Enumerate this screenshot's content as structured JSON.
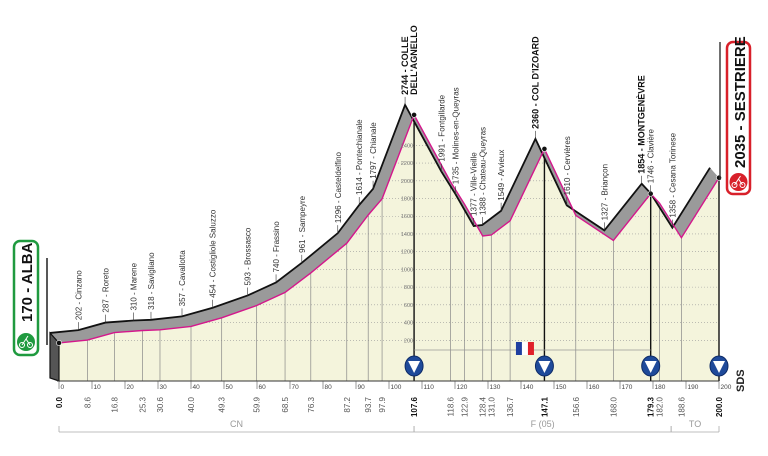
{
  "chart_data": {
    "type": "area",
    "title": "",
    "xlabel": "",
    "ylabel": "",
    "xlim": [
      0,
      200
    ],
    "ylim": [
      0,
      2800
    ],
    "x_ticks": [
      0,
      10,
      20,
      30,
      40,
      50,
      60,
      70,
      80,
      90,
      100,
      110,
      120,
      130,
      140,
      150,
      160,
      170,
      180,
      190,
      200
    ],
    "y_ticks": [
      200,
      400,
      600,
      800,
      1000,
      1200,
      1400,
      1600,
      1800,
      2000,
      2200,
      2400
    ],
    "grid": true,
    "colors": {
      "profile_line": "#d4178c",
      "fill": "#f4f4dc",
      "band": "#9a9a9a",
      "top_line": "#111111",
      "start": "#1f9a3f",
      "finish": "#d8202a",
      "marker": "#1f4a9a"
    },
    "start": {
      "label": "170 - ALBA",
      "icon": "cyclist-icon"
    },
    "finish": {
      "label": "2035 - SESTRIERE",
      "icon": "cyclist-icon"
    },
    "waypoints": [
      {
        "km": 0.0,
        "km_label": "0.0",
        "alt": 170,
        "name": "",
        "bold": true
      },
      {
        "km": 8.6,
        "km_label": "8.6",
        "alt": 202,
        "name": "202 - Cinzano"
      },
      {
        "km": 16.8,
        "km_label": "16.8",
        "alt": 287,
        "name": "287 - Roreto"
      },
      {
        "km": 25.3,
        "km_label": "25.3",
        "alt": 310,
        "name": "310 - Marene"
      },
      {
        "km": 30.6,
        "km_label": "30.6",
        "alt": 318,
        "name": "318 - Savigliano"
      },
      {
        "km": 40.0,
        "km_label": "40.0",
        "alt": 357,
        "name": "357 - Cavallotta"
      },
      {
        "km": 49.3,
        "km_label": "49.3",
        "alt": 454,
        "name": "454 - Costigliole Saluzzo"
      },
      {
        "km": 59.9,
        "km_label": "59.9",
        "alt": 593,
        "name": "593 - Brossasco"
      },
      {
        "km": 68.5,
        "km_label": "68.5",
        "alt": 740,
        "name": "740 - Frassino"
      },
      {
        "km": 76.3,
        "km_label": "76.3",
        "alt": 961,
        "name": "961 - Sampeyre"
      },
      {
        "km": 87.2,
        "km_label": "87.2",
        "alt": 1296,
        "name": "1296 - Casteldelfino"
      },
      {
        "km": 93.7,
        "km_label": "93.7",
        "alt": 1614,
        "name": "1614 - Pontechianale"
      },
      {
        "km": 97.9,
        "km_label": "97.9",
        "alt": 1797,
        "name": "1797 - Chianale"
      },
      {
        "km": 107.6,
        "km_label": "107.6",
        "alt": 2744,
        "name": "2744 - COLLE",
        "name2": "DELL'AGNELLO",
        "bold": true,
        "marker": true
      },
      {
        "km": 118.6,
        "km_label": "118.6",
        "alt": 1991,
        "name": "1991 - Fontgillarde"
      },
      {
        "km": 122.9,
        "km_label": "122.9",
        "alt": 1735,
        "name": "1735 - Molines-en-Queyras"
      },
      {
        "km": 128.4,
        "km_label": "128.4",
        "alt": 1377,
        "name": "1377 - Ville-Vieille"
      },
      {
        "km": 131.0,
        "km_label": "131.0",
        "alt": 1388,
        "name": "1388 - Chateau-Queyras"
      },
      {
        "km": 136.7,
        "km_label": "136.7",
        "alt": 1549,
        "name": "1549 - Arvieux"
      },
      {
        "km": 147.1,
        "km_label": "147.1",
        "alt": 2360,
        "name": "2360 - COL D'IZOARD",
        "bold": true,
        "marker": true
      },
      {
        "km": 156.6,
        "km_label": "156.6",
        "alt": 1610,
        "name": "1610 - Cervières"
      },
      {
        "km": 168.0,
        "km_label": "168.0",
        "alt": 1327,
        "name": "1327 - Briançon"
      },
      {
        "km": 179.3,
        "km_label": "179.3",
        "alt": 1854,
        "name": "1854 - MONTGENÈVRE",
        "bold": true,
        "marker": true
      },
      {
        "km": 182.0,
        "km_label": "182.0",
        "alt": 1746,
        "name": "1746 - Clavière"
      },
      {
        "km": 188.6,
        "km_label": "188.6",
        "alt": 1358,
        "name": "1358 - Cesana Torinese"
      },
      {
        "km": 200.0,
        "km_label": "200.0",
        "alt": 2035,
        "name": "",
        "bold": true,
        "marker": true
      }
    ],
    "regions": [
      {
        "label": "CN",
        "from": 0,
        "to": 107.6
      },
      {
        "label": "F (05)",
        "from": 107.6,
        "to": 185.5
      },
      {
        "label": "TO",
        "from": 185.5,
        "to": 200
      }
    ],
    "country_section": {
      "from": 107.6,
      "to": 179.3,
      "flag": "france-flag-icon"
    }
  },
  "logo": "SDS"
}
